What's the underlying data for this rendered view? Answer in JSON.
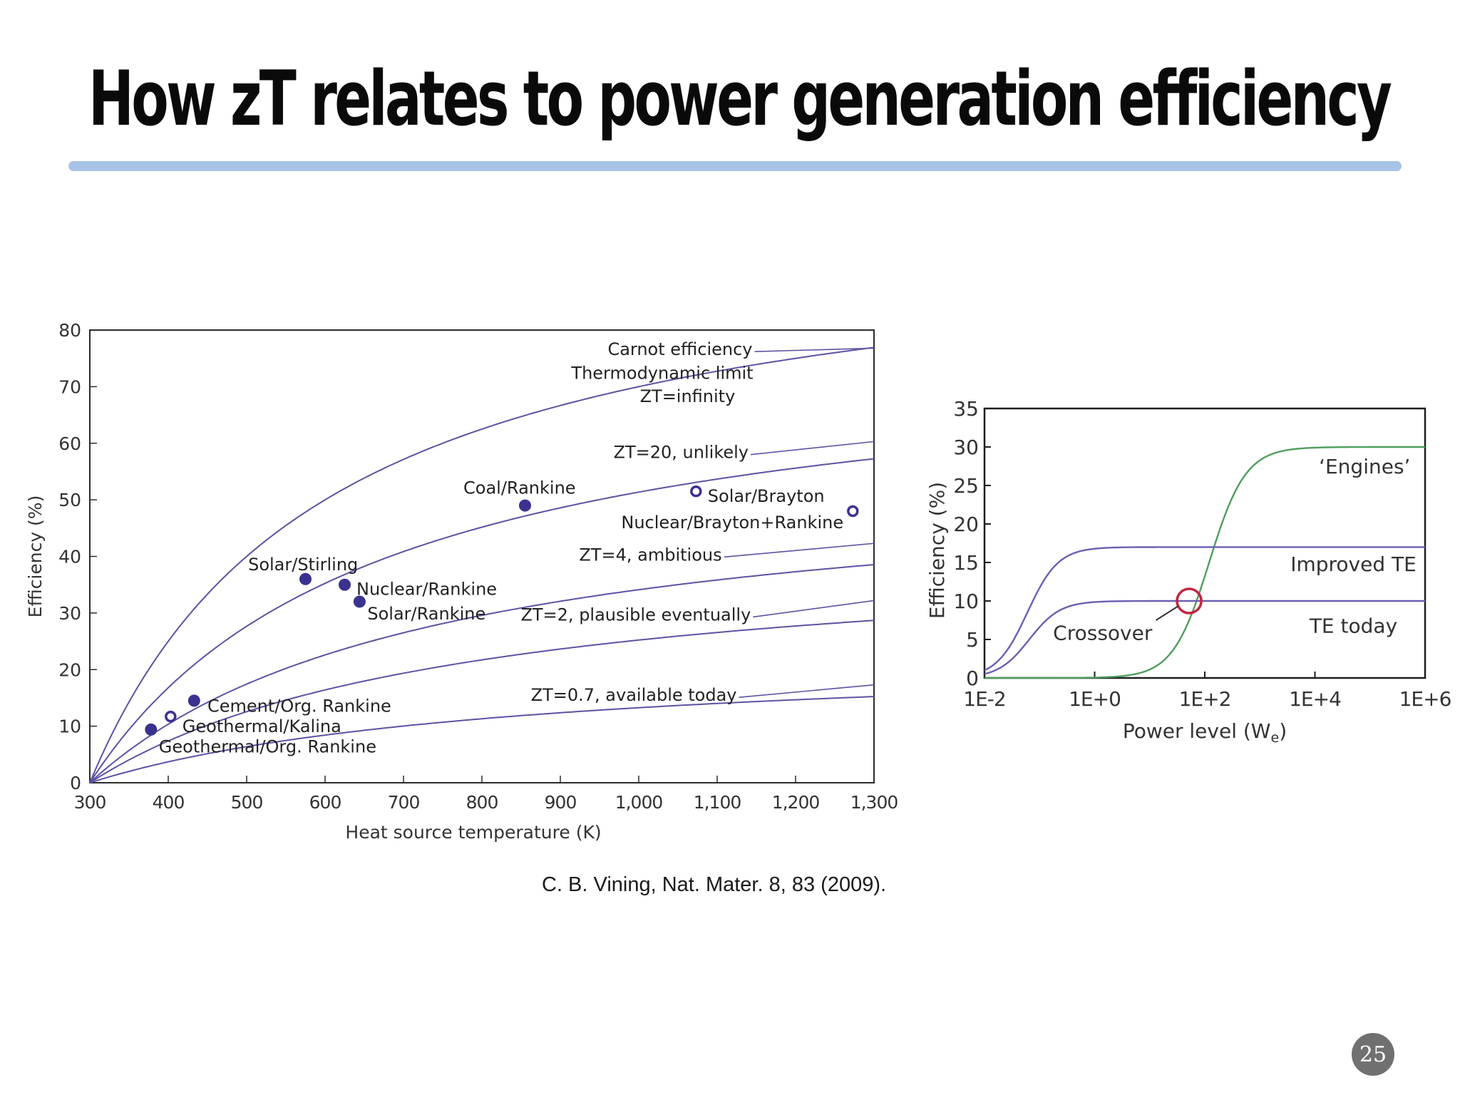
{
  "slide": {
    "title": "How zT relates to power generation efficiency",
    "citation": "C. B. Vining, Nat. Mater. 8, 83 (2009).",
    "page_number": "25",
    "rule_color": "#a7c3e6"
  },
  "chart_data": [
    {
      "type": "line",
      "xlabel": "Heat source temperature (K)",
      "ylabel": "Efficiency (%)",
      "xlim": [
        300,
        1300
      ],
      "ylim": [
        0,
        80
      ],
      "x_ticks": [
        {
          "v": 300,
          "label": "300"
        },
        {
          "v": 400,
          "label": "400"
        },
        {
          "v": 500,
          "label": "500"
        },
        {
          "v": 600,
          "label": "600"
        },
        {
          "v": 700,
          "label": "700"
        },
        {
          "v": 800,
          "label": "800"
        },
        {
          "v": 900,
          "label": "900"
        },
        {
          "v": 1000,
          "label": "1,000"
        },
        {
          "v": 1100,
          "label": "1,100"
        },
        {
          "v": 1200,
          "label": "1,200"
        },
        {
          "v": 1300,
          "label": "1,300"
        }
      ],
      "y_ticks": [
        0,
        10,
        20,
        30,
        40,
        50,
        60,
        70,
        80
      ],
      "grid": false,
      "line_color": "#5b53a3",
      "marker_color": "#3b3290",
      "series": [
        {
          "zt": "infinity",
          "cold_temperature": 300,
          "labels": [
            {
              "text": "Carnot efficiency",
              "x": 1145,
              "y": 76.7,
              "anchor": "end",
              "leader_to": [
                1300,
                76.8
              ]
            },
            {
              "text": "Thermodynamic limit",
              "x": 1146,
              "y": 72.5,
              "anchor": "end"
            },
            {
              "text": "ZT=infinity",
              "x": 1123,
              "y": 68.4,
              "anchor": "end"
            }
          ]
        },
        {
          "zt": 20,
          "cold_temperature": 300,
          "labels": [
            {
              "text": "ZT=20, unlikely",
              "x": 1140,
              "y": 58.5,
              "anchor": "end",
              "leader_to": [
                1300,
                60.3
              ]
            }
          ]
        },
        {
          "zt": 4,
          "cold_temperature": 300,
          "labels": [
            {
              "text": "ZT=4, ambitious",
              "x": 1106,
              "y": 40.4,
              "anchor": "end",
              "leader_to": [
                1300,
                42.3
              ]
            }
          ]
        },
        {
          "zt": 2,
          "cold_temperature": 300,
          "labels": [
            {
              "text": "ZT=2, plausible eventually",
              "x": 1143,
              "y": 29.8,
              "anchor": "end",
              "leader_to": [
                1300,
                32.2
              ]
            }
          ]
        },
        {
          "zt": 0.7,
          "cold_temperature": 300,
          "labels": [
            {
              "text": "ZT=0.7, available today",
              "x": 1125,
              "y": 15.6,
              "anchor": "end",
              "leader_to": [
                1300,
                17.3
              ]
            }
          ]
        }
      ],
      "points": [
        {
          "label": "Coal/Rankine",
          "x": 855,
          "y": 49,
          "filled": true,
          "lx": 848,
          "ly": 52.2,
          "anchor": "middle"
        },
        {
          "label": "Solar/Brayton",
          "x": 1073,
          "y": 51.5,
          "filled": false,
          "lx": 1088,
          "ly": 50.8,
          "anchor": "start"
        },
        {
          "label": "Nuclear/Brayton+Rankine",
          "x": 1273,
          "y": 48,
          "filled": false,
          "lx": 1261,
          "ly": 46.1,
          "anchor": "end"
        },
        {
          "label": "Solar/Stirling",
          "x": 575,
          "y": 36,
          "filled": true,
          "lx": 572,
          "ly": 38.7,
          "anchor": "middle"
        },
        {
          "label": "Nuclear/Rankine",
          "x": 625,
          "y": 35,
          "filled": true,
          "lx": 640,
          "ly": 34.3,
          "anchor": "start"
        },
        {
          "label": "Solar/Rankine",
          "x": 644,
          "y": 32,
          "filled": true,
          "lx": 654,
          "ly": 30.0,
          "anchor": "start"
        },
        {
          "label": "Cement/Org. Rankine",
          "x": 433,
          "y": 14.5,
          "filled": true,
          "lx": 450,
          "ly": 13.7,
          "anchor": "start"
        },
        {
          "label": "Geothermal/Kalina",
          "x": 403,
          "y": 11.7,
          "filled": false,
          "lx": 418,
          "ly": 10.1,
          "anchor": "start"
        },
        {
          "label": "Geothermal/Org. Rankine",
          "x": 378,
          "y": 9.4,
          "filled": true,
          "lx": 388,
          "ly": 6.5,
          "anchor": "start"
        }
      ]
    },
    {
      "type": "line",
      "xlabel": "Power level (W",
      "xlabel_subscript": "e",
      "xlabel_suffix": ")",
      "ylabel": "Efficiency (%)",
      "x_scale": "log",
      "xlim": [
        0.01,
        1000000
      ],
      "ylim": [
        0,
        35
      ],
      "x_ticks": [
        {
          "v": 0.01,
          "label": "1E-2"
        },
        {
          "v": 1,
          "label": "1E+0"
        },
        {
          "v": 100,
          "label": "1E+2"
        },
        {
          "v": 10000,
          "label": "1E+4"
        },
        {
          "v": 1000000,
          "label": "1E+6"
        }
      ],
      "y_ticks": [
        0,
        5,
        10,
        15,
        20,
        25,
        30,
        35
      ],
      "grid": false,
      "series": [
        {
          "name": "‘Engines’",
          "color": "#4f9e5d",
          "plateau": 30,
          "midpoint": 120,
          "width": 0.33,
          "label_x": 80000,
          "label_y": 27.5
        },
        {
          "name": "Improved TE",
          "color": "#6a5fb3",
          "plateau": 17,
          "midpoint": 0.06,
          "width": 0.28,
          "label_x": 50000,
          "label_y": 14.8
        },
        {
          "name": "TE today",
          "color": "#6a5fb3",
          "plateau": 10,
          "midpoint": 0.065,
          "width": 0.28,
          "label_x": 50000,
          "label_y": 6.8
        }
      ],
      "annotation": {
        "text": "Crossover",
        "x": 52,
        "y": 10,
        "color": "#c0273f",
        "label_x": 1.4,
        "label_y": 5.9,
        "arrow_from": [
          13,
          7.5
        ]
      }
    }
  ]
}
